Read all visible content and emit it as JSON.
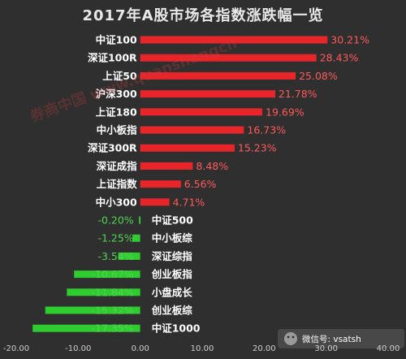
{
  "chart_data": {
    "type": "bar",
    "orientation": "horizontal",
    "title": "2017年A股市场各指数涨跌幅一览",
    "categories": [
      "中证100",
      "深证100R",
      "上证50",
      "沪深300",
      "上证180",
      "中小板指",
      "深证300R",
      "深证成指",
      "上证指数",
      "中小300",
      "中证500",
      "中小板综",
      "深证综指",
      "创业板指",
      "小盘成长",
      "创业板综",
      "中证1000"
    ],
    "values": [
      30.21,
      28.43,
      25.08,
      21.78,
      19.69,
      16.73,
      15.23,
      8.48,
      6.56,
      4.71,
      -0.2,
      -1.25,
      -3.54,
      -10.67,
      -11.84,
      -15.32,
      -17.35
    ],
    "value_labels": [
      "30.21%",
      "28.43%",
      "25.08%",
      "21.78%",
      "19.69%",
      "16.73%",
      "15.23%",
      "8.48%",
      "6.56%",
      "4.71%",
      "-0.20%",
      "-1.25%",
      "-3.54%",
      "-10.67%",
      "-11.84%",
      "-15.32%",
      "-17.35%"
    ],
    "xlim": [
      -20,
      40
    ],
    "x_ticks": [
      "-20.00",
      "-10.00",
      "0.00",
      "10.00",
      "20.00",
      "30.00",
      "40.00"
    ],
    "xlabel": "",
    "ylabel": "",
    "grid": false,
    "legend": "none",
    "colors": {
      "positive": "#e8262a",
      "negative": "#2ecc2e",
      "background": "#2f2f2f"
    }
  },
  "watermark": "券商中国 www.quanshangcn",
  "badge": {
    "text": "微信号: vsatsh"
  }
}
